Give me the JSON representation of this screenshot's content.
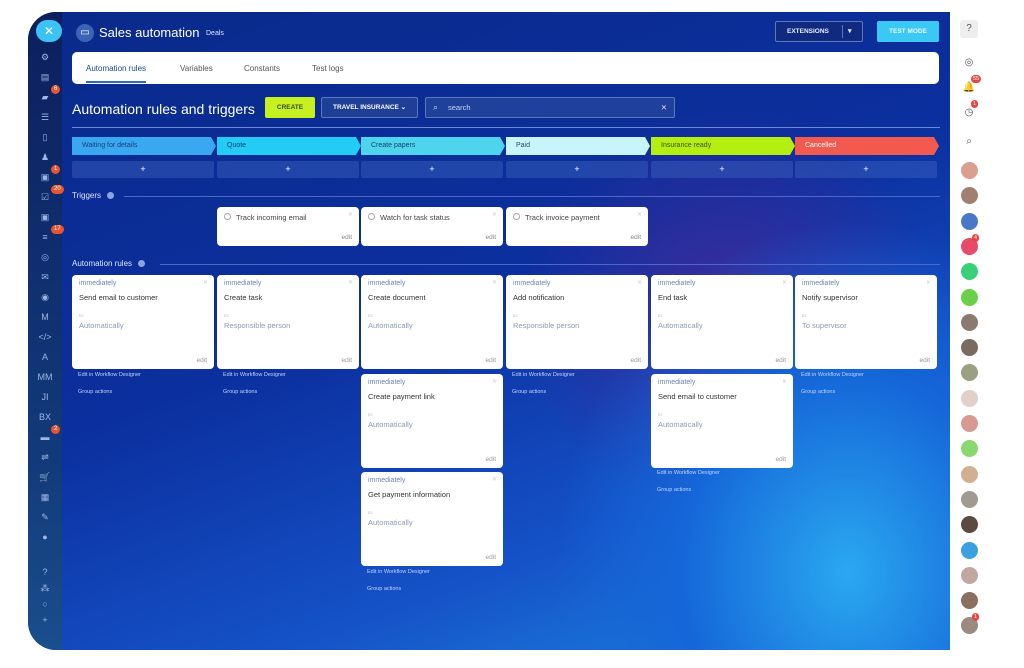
{
  "left_sidebar": {
    "close_icon": "close-icon",
    "items": [
      {
        "icon": "robot-icon",
        "glyph": "⚙"
      },
      {
        "icon": "inbox-icon",
        "glyph": "▤"
      },
      {
        "icon": "chat-icon",
        "glyph": "▰",
        "badge": "6"
      },
      {
        "icon": "crm-icon",
        "glyph": "☰"
      },
      {
        "icon": "document-icon",
        "glyph": "▯"
      },
      {
        "icon": "users-icon",
        "glyph": "♟"
      },
      {
        "icon": "calendar-icon",
        "glyph": "▣",
        "badge": "1"
      },
      {
        "icon": "tasks-icon",
        "glyph": "☑",
        "badge": "20"
      },
      {
        "icon": "contact-icon",
        "glyph": "▣"
      },
      {
        "icon": "filter-icon",
        "glyph": "≡",
        "badge": "17"
      },
      {
        "icon": "target-icon",
        "glyph": "◎"
      },
      {
        "icon": "mail-icon",
        "glyph": "✉"
      },
      {
        "icon": "database-icon",
        "glyph": "◉"
      },
      {
        "icon": "logo-icon",
        "glyph": "M"
      },
      {
        "icon": "code-icon",
        "glyph": "</>"
      },
      {
        "icon": "app-a-icon",
        "glyph": "A"
      },
      {
        "icon": "app-mm-icon",
        "glyph": "MM"
      },
      {
        "icon": "app-ji-icon",
        "glyph": "JI"
      },
      {
        "icon": "app-bx-icon",
        "glyph": "BX"
      },
      {
        "icon": "bot-icon",
        "glyph": "▬",
        "badge": "2"
      },
      {
        "icon": "sliders-icon",
        "glyph": "⇌"
      },
      {
        "icon": "cart-icon",
        "glyph": "🛒"
      },
      {
        "icon": "store-icon",
        "glyph": "▦"
      },
      {
        "icon": "pen-icon",
        "glyph": "✎"
      },
      {
        "icon": "more-icon",
        "glyph": "●"
      },
      {
        "icon": "help-icon",
        "glyph": "?"
      },
      {
        "icon": "sitemap-icon",
        "glyph": "⁂"
      },
      {
        "icon": "settings-icon",
        "glyph": "○"
      },
      {
        "icon": "add-icon",
        "glyph": "+"
      }
    ]
  },
  "header": {
    "title": "Sales automation",
    "breadcrumb": "Deals",
    "extensions_label": "EXTENSIONS",
    "test_mode_label": "TEST MODE"
  },
  "tabs": [
    {
      "label": "Automation rules",
      "active": true
    },
    {
      "label": "Variables"
    },
    {
      "label": "Constants"
    },
    {
      "label": "Test logs"
    }
  ],
  "toolbar": {
    "heading": "Automation rules and triggers",
    "create_label": "CREATE",
    "category_label": "TRAVEL INSURANCE",
    "search_placeholder": "search"
  },
  "stages": [
    {
      "label": "Waiting for details",
      "color": "#3aa8f0",
      "text": "#1d3d7a"
    },
    {
      "label": "Quote",
      "color": "#22ccf5",
      "text": "#14406a"
    },
    {
      "label": "Create papers",
      "color": "#4fd4ee",
      "text": "#14406a"
    },
    {
      "label": "Paid",
      "color": "#c8f5fb",
      "text": "#2a4a6a"
    },
    {
      "label": "Insurance ready",
      "color": "#b5ef12",
      "text": "#3a5010"
    },
    {
      "label": "Cancelled",
      "color": "#f35a4f",
      "text": "#ffffff"
    }
  ],
  "plus_label": "+",
  "triggers_label": "Triggers",
  "triggers": [
    {
      "column": 1,
      "name": "Track incoming email",
      "edit": "edit"
    },
    {
      "column": 2,
      "name": "Watch for task status",
      "edit": "edit"
    },
    {
      "column": 3,
      "name": "Track invoice payment",
      "edit": "edit"
    }
  ],
  "rules_label": "Automation rules",
  "columns": [
    {
      "rules": [
        {
          "delay": "immediately",
          "name": "Send email to customer",
          "to": "to:",
          "responsible": "Automatically",
          "edit": "edit"
        }
      ],
      "designer": "Edit in Workflow Designer",
      "group": "Group actions"
    },
    {
      "rules": [
        {
          "delay": "immediately",
          "name": "Create task",
          "to": "to:",
          "responsible": "Responsible person",
          "edit": "edit"
        }
      ],
      "designer": "Edit in Workflow Designer",
      "group": "Group actions"
    },
    {
      "rules": [
        {
          "delay": "immediately",
          "name": "Create document",
          "to": "to:",
          "responsible": "Automatically",
          "edit": "edit"
        },
        {
          "delay": "immediately",
          "name": "Create payment link",
          "to": "to:",
          "responsible": "Automatically",
          "edit": "edit"
        },
        {
          "delay": "immediately",
          "name": "Get payment information",
          "to": "to:",
          "responsible": "Automatically",
          "edit": "edit"
        }
      ],
      "designer": "Edit in Workflow Designer",
      "group": "Group actions"
    },
    {
      "rules": [
        {
          "delay": "immediately",
          "name": "Add notification",
          "to": "to:",
          "responsible": "Responsible person",
          "edit": "edit"
        }
      ],
      "designer": "Edit in Workflow Designer",
      "group": "Group actions"
    },
    {
      "rules": [
        {
          "delay": "immediately",
          "name": "End task",
          "to": "to:",
          "responsible": "Automatically",
          "edit": "edit"
        },
        {
          "delay": "immediately",
          "name": "Send email to customer",
          "to": "to:",
          "responsible": "Automatically",
          "edit": "edit"
        }
      ],
      "designer": "Edit in Workflow Designer",
      "group": "Group actions"
    },
    {
      "rules": [
        {
          "delay": "immediately",
          "name": "Notify supervisor",
          "to": "to:",
          "responsible": "To supervisor",
          "edit": "edit"
        }
      ],
      "designer": "Edit in Workflow Designer",
      "group": "Group actions"
    }
  ],
  "right_sidebar": {
    "icons": [
      {
        "icon": "help-icon",
        "glyph": "?"
      },
      {
        "icon": "chat-icon",
        "glyph": "◎"
      },
      {
        "icon": "bell-icon",
        "glyph": "🔔",
        "badge": "55"
      },
      {
        "icon": "clock-icon",
        "glyph": "◷",
        "badge": "1"
      },
      {
        "icon": "search-icon",
        "glyph": "⌕"
      }
    ],
    "avatar_colors": [
      "#d9a090",
      "#a08070",
      "#4a78c8",
      "#e84a6a",
      "#3ad07a",
      "#6ad04a",
      "#8a7a70",
      "#7a6a60",
      "#9aa080",
      "#e0d0c8",
      "#d89a90",
      "#8ad870",
      "#d0b090",
      "#a09a90",
      "#5a4a40",
      "#3aa0e0",
      "#c0a8a0",
      "#8a7060",
      "#9a8a80"
    ],
    "avatar_badges": {
      "3": "4",
      "18": "1"
    }
  }
}
